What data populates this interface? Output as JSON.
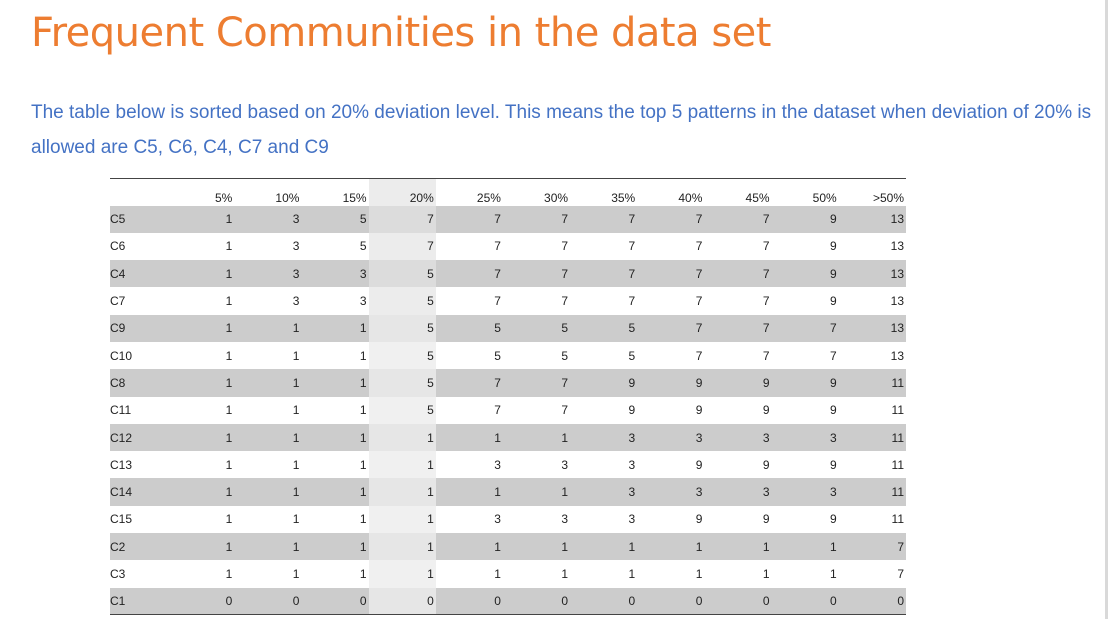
{
  "title": "Frequent Communities in the data set",
  "description": "The table below is sorted based on 20% deviation level. This means the top 5 patterns in the dataset when deviation of 20% is allowed are C5, C6, C4, C7 and C9",
  "table": {
    "headers": [
      "",
      "5%",
      "10%",
      "15%",
      "20%",
      "25%",
      "30%",
      "35%",
      "40%",
      "45%",
      "50%",
      ">50%"
    ],
    "rows": [
      [
        "C5",
        "1",
        "3",
        "5",
        "7",
        "7",
        "7",
        "7",
        "7",
        "7",
        "9",
        "13"
      ],
      [
        "C6",
        "1",
        "3",
        "5",
        "7",
        "7",
        "7",
        "7",
        "7",
        "7",
        "9",
        "13"
      ],
      [
        "C4",
        "1",
        "3",
        "3",
        "5",
        "7",
        "7",
        "7",
        "7",
        "7",
        "9",
        "13"
      ],
      [
        "C7",
        "1",
        "3",
        "3",
        "5",
        "7",
        "7",
        "7",
        "7",
        "7",
        "9",
        "13"
      ],
      [
        "C9",
        "1",
        "1",
        "1",
        "5",
        "5",
        "5",
        "5",
        "7",
        "7",
        "7",
        "13"
      ],
      [
        "C10",
        "1",
        "1",
        "1",
        "5",
        "5",
        "5",
        "5",
        "7",
        "7",
        "7",
        "13"
      ],
      [
        "C8",
        "1",
        "1",
        "1",
        "5",
        "7",
        "7",
        "9",
        "9",
        "9",
        "9",
        "11"
      ],
      [
        "C11",
        "1",
        "1",
        "1",
        "5",
        "7",
        "7",
        "9",
        "9",
        "9",
        "9",
        "11"
      ],
      [
        "C12",
        "1",
        "1",
        "1",
        "1",
        "1",
        "1",
        "3",
        "3",
        "3",
        "3",
        "11"
      ],
      [
        "C13",
        "1",
        "1",
        "1",
        "1",
        "3",
        "3",
        "3",
        "9",
        "9",
        "9",
        "11"
      ],
      [
        "C14",
        "1",
        "1",
        "1",
        "1",
        "1",
        "1",
        "3",
        "3",
        "3",
        "3",
        "11"
      ],
      [
        "C15",
        "1",
        "1",
        "1",
        "1",
        "3",
        "3",
        "3",
        "9",
        "9",
        "9",
        "11"
      ],
      [
        "C2",
        "1",
        "1",
        "1",
        "1",
        "1",
        "1",
        "1",
        "1",
        "1",
        "1",
        "7"
      ],
      [
        "C3",
        "1",
        "1",
        "1",
        "1",
        "1",
        "1",
        "1",
        "1",
        "1",
        "1",
        "7"
      ],
      [
        "C1",
        "0",
        "0",
        "0",
        "0",
        "0",
        "0",
        "0",
        "0",
        "0",
        "0",
        "0"
      ]
    ]
  },
  "colors": {
    "title": "#ed7d31",
    "description": "#4472c4",
    "row_shade": "#cccccc"
  }
}
